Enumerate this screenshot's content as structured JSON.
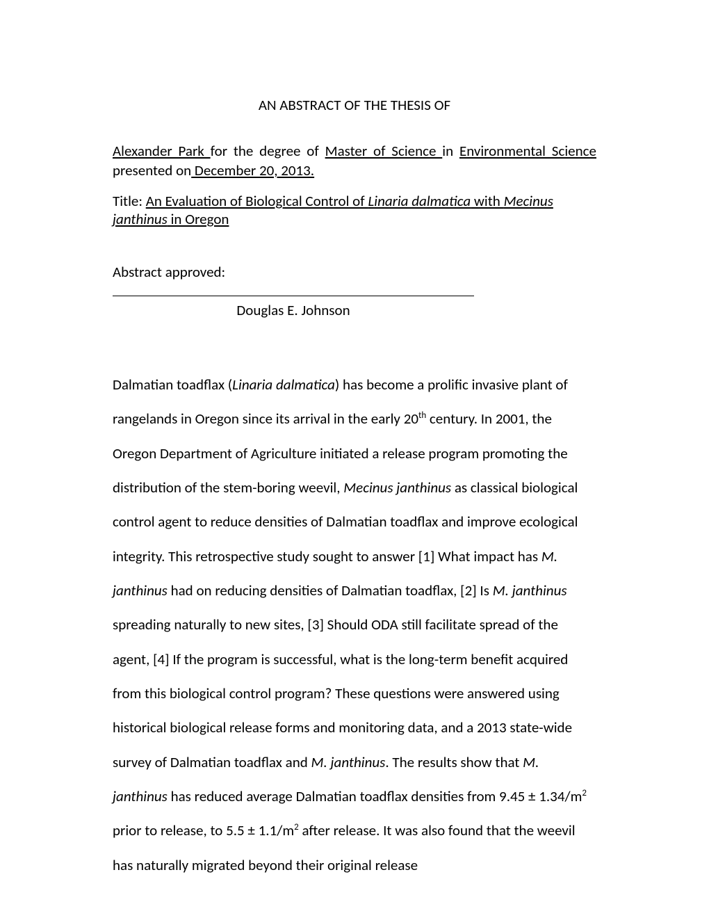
{
  "heading": "AN ABSTRACT OF THE THESIS OF",
  "author": {
    "name_u": "Alexander Park ",
    "mid1": "for the degree of ",
    "degree_u": "Master of Science ",
    "mid2": "in ",
    "field_u": "Environmental Science"
  },
  "presented": {
    "prefix": "presented on",
    "date_u": " December 20, 2013."
  },
  "title": {
    "prefix": "Title:  ",
    "part1_u": "An Evaluation of Biological Control of ",
    "part2_ui": "Linaria dalmatica",
    "part3_u": " with ",
    "part4_ui": "Mecinus janthinus",
    "part5_u": " in Oregon"
  },
  "approved_label": "Abstract approved:",
  "approver": "Douglas E.  Johnson",
  "body": {
    "t1": "Dalmatian toadflax (",
    "i1": "Linaria dalmatica",
    "t2": ") has become a prolific invasive plant of rangelands in Oregon since its arrival in the early 20",
    "sup1": "th",
    "t3": " century.  In 2001, the Oregon Department of Agriculture initiated a release program promoting the distribution of the stem-boring weevil, ",
    "i2": "Mecinus janthinus",
    "t4": " as classical biological control agent to reduce densities of Dalmatian toadflax and improve ecological integrity.  This retrospective study sought to answer [1] What impact has ",
    "i3": "M. janthinus",
    "t5": " had on reducing densities of Dalmatian toadflax, [2] Is ",
    "i4": "M. janthinus",
    "t6": " spreading naturally to new sites, [3] Should ODA still facilitate spread of the agent, [4] If the program is successful, what is the long-term benefit acquired from this biological control program?  These questions were answered using historical biological release forms and monitoring data, and a 2013 state-wide survey of Dalmatian toadflax and ",
    "i5": "M. janthinus",
    "t7": ".  The results show that ",
    "i6": "M. janthinus",
    "t8": " has reduced average Dalmatian toadflax densities from 9.45 ± 1.34/m",
    "sup2": "2",
    "t9": " prior to release, to 5.5 ± 1.1/m",
    "sup3": "2",
    "t10": " after release.  It was also found that the weevil has naturally migrated beyond their original release"
  }
}
